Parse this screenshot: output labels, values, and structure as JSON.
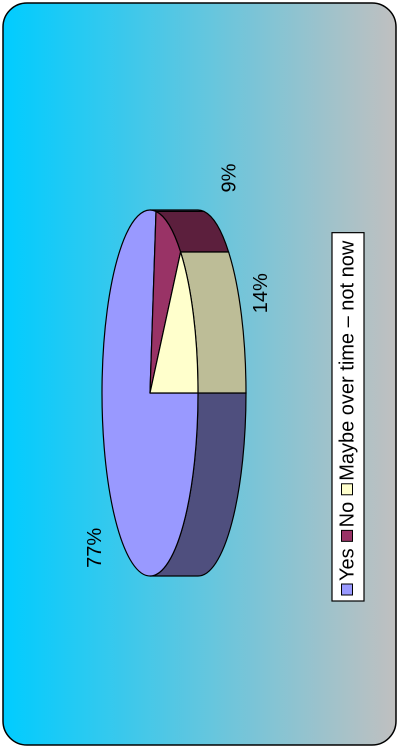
{
  "chart_data": {
    "type": "pie",
    "style": "3d",
    "orientation": "rotated 90 degrees counter-clockwise",
    "legend_position": "right",
    "title": "",
    "slices": [
      {
        "label": "Yes",
        "value": 77,
        "value_label": "77%",
        "color": "#9999FF",
        "side_color": "#4F4F7E"
      },
      {
        "label": "No",
        "value": 9,
        "value_label": "9%",
        "color": "#993366",
        "side_color": "#5C1F3D"
      },
      {
        "label": "Maybe over time – not now",
        "value": 14,
        "value_label": "14%",
        "color": "#FFFFCC",
        "side_color": "#BDBD97"
      }
    ]
  },
  "colors": {
    "background_gradient_start": "#00CCFF",
    "background_gradient_end": "#C0C0C0",
    "panel_border": "#000000",
    "outline": "#000000"
  }
}
